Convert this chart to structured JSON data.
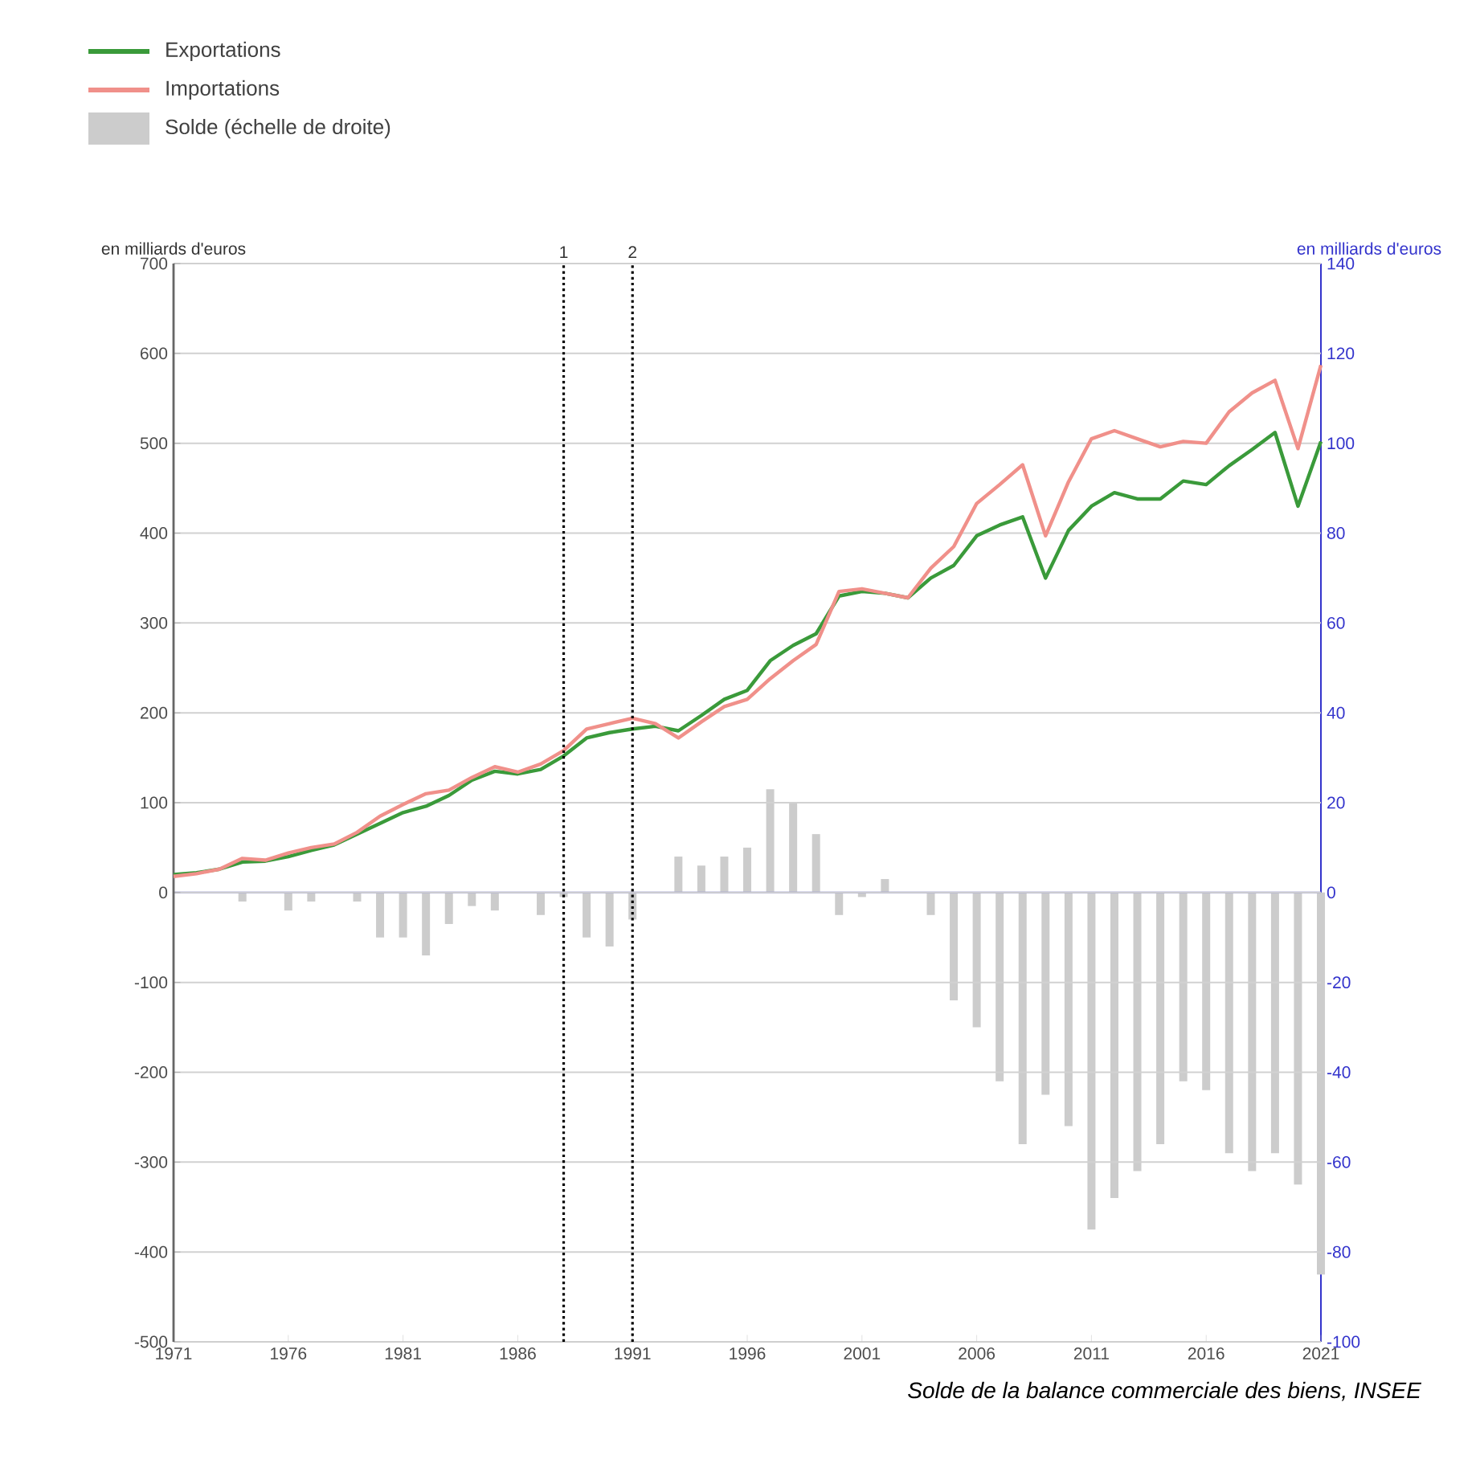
{
  "chart_data": {
    "type": "line",
    "ylabel": "en milliards d'euros",
    "y2label": "en milliards d'euros",
    "annotations": [
      "Solde de la balance commerciale des biens, INSEE",
      {
        "text": "1",
        "x": 1988,
        "y": 700
      },
      {
        "text": "2",
        "x": 1991,
        "y": 700
      }
    ],
    "x": [
      1971,
      1972,
      1973,
      1974,
      1975,
      1976,
      1977,
      1978,
      1979,
      1980,
      1981,
      1982,
      1983,
      1984,
      1985,
      1986,
      1987,
      1988,
      1989,
      1990,
      1991,
      1992,
      1993,
      1994,
      1995,
      1996,
      1997,
      1998,
      1999,
      2000,
      2001,
      2002,
      2003,
      2004,
      2005,
      2006,
      2007,
      2008,
      2009,
      2010,
      2011,
      2012,
      2013,
      2014,
      2015,
      2016,
      2017,
      2018,
      2019,
      2020,
      2021
    ],
    "series": [
      {
        "name": "Exportations",
        "color": "#3a9a3a",
        "values": [
          20,
          22,
          26,
          34,
          35,
          40,
          47,
          53,
          65,
          77,
          89,
          96,
          108,
          125,
          135,
          132,
          137,
          152,
          172,
          178,
          182,
          185,
          180,
          197,
          215,
          225,
          258,
          275,
          288,
          330,
          335,
          333,
          328,
          350,
          364,
          397,
          409,
          418,
          350,
          403,
          430,
          445,
          438,
          438,
          458,
          454,
          475,
          493,
          512,
          430,
          502
        ]
      },
      {
        "name": "Importations",
        "color": "#f0908a",
        "values": [
          18,
          21,
          26,
          38,
          36,
          44,
          50,
          54,
          67,
          85,
          98,
          110,
          114,
          128,
          140,
          134,
          143,
          158,
          182,
          188,
          194,
          188,
          172,
          190,
          207,
          215,
          238,
          258,
          276,
          335,
          338,
          333,
          328,
          361,
          385,
          433,
          454,
          476,
          397,
          457,
          505,
          514,
          505,
          496,
          502,
          500,
          535,
          556,
          570,
          494,
          587
        ]
      },
      {
        "name": "Solde (échelle de droite)",
        "type": "bar",
        "axis": "y2",
        "color": "#cccccc",
        "values": [
          0,
          0,
          0,
          -2,
          0,
          -4,
          -2,
          0,
          -2,
          -10,
          -10,
          -14,
          -7,
          -3,
          -4,
          0,
          -5,
          -1,
          -10,
          -12,
          -6,
          0,
          8,
          6,
          8,
          10,
          23,
          20,
          13,
          -5,
          -1,
          3,
          0,
          -5,
          -24,
          -30,
          -42,
          -56,
          -45,
          -52,
          -75,
          -68,
          -62,
          -56,
          -42,
          -44,
          -58,
          -62,
          -58,
          -65,
          -85
        ]
      }
    ],
    "xlim": [
      1971,
      2021
    ],
    "xticks": [
      1971,
      1976,
      1981,
      1986,
      1991,
      1996,
      2001,
      2006,
      2011,
      2016,
      2021
    ],
    "ylim": [
      -500,
      700
    ],
    "yticks": [
      -500,
      -400,
      -300,
      -200,
      -100,
      0,
      100,
      200,
      300,
      400,
      500,
      600,
      700
    ],
    "y2lim": [
      -100,
      140
    ],
    "y2ticks": [
      -100,
      -80,
      -60,
      -40,
      -20,
      0,
      20,
      40,
      60,
      80,
      100,
      120,
      140
    ],
    "ref_lines": [
      {
        "axis": "x",
        "value": 1988,
        "color": "#000000",
        "line_style": "dotted"
      },
      {
        "axis": "x",
        "value": 1991,
        "color": "#000000",
        "line_style": "dotted"
      },
      {
        "axis": "y2",
        "value": 0,
        "color": "#6666cc",
        "line_style": "solid"
      }
    ],
    "grid": "y",
    "legend": "top left"
  }
}
